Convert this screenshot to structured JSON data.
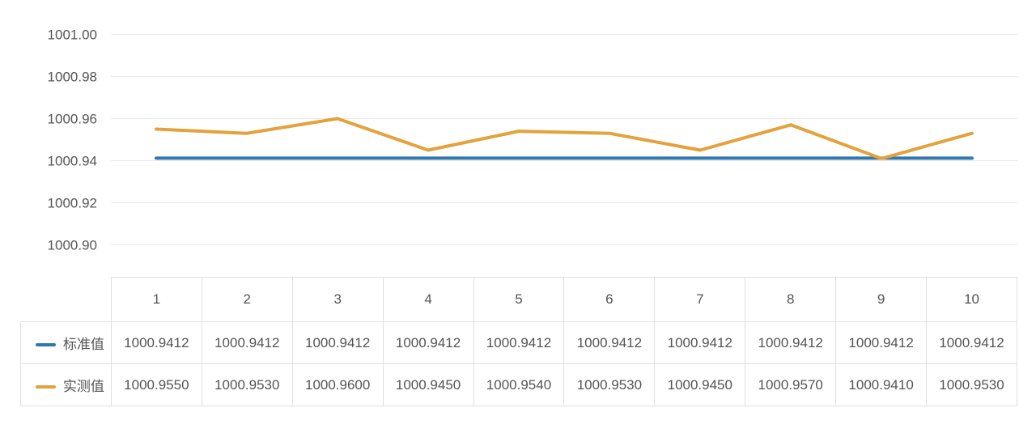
{
  "page": {
    "background_color": "#ffffff"
  },
  "chart_data": {
    "type": "line",
    "title": "",
    "xlabel": "",
    "ylabel": "",
    "categories": [
      "1",
      "2",
      "3",
      "4",
      "5",
      "6",
      "7",
      "8",
      "9",
      "10"
    ],
    "series": [
      {
        "name": "标准值",
        "color": "#2f78b0",
        "values": [
          1000.9412,
          1000.9412,
          1000.9412,
          1000.9412,
          1000.9412,
          1000.9412,
          1000.9412,
          1000.9412,
          1000.9412,
          1000.9412
        ]
      },
      {
        "name": "实测值",
        "color": "#e3a23b",
        "values": [
          1000.955,
          1000.953,
          1000.96,
          1000.945,
          1000.954,
          1000.953,
          1000.945,
          1000.957,
          1000.941,
          1000.953
        ]
      }
    ],
    "ylim": [
      1000.9,
      1001.0
    ],
    "ytick_labels": [
      "1001.00",
      "1000.98",
      "1000.96",
      "1000.94",
      "1000.92",
      "1000.90"
    ],
    "grid": true,
    "gridline_color": "#e9e9e9",
    "axis_text_color": "#565656",
    "line_width": 4,
    "markers": false,
    "legend_position": "table-row-headers",
    "value_decimals": 4
  },
  "table": {
    "corner_label": "",
    "border_color": "#e0e0e0",
    "text_color": "#545454",
    "column_headers": [
      "1",
      "2",
      "3",
      "4",
      "5",
      "6",
      "7",
      "8",
      "9",
      "10"
    ],
    "rows": [
      {
        "label": "标准值",
        "cells": [
          "1000.9412",
          "1000.9412",
          "1000.9412",
          "1000.9412",
          "1000.9412",
          "1000.9412",
          "1000.9412",
          "1000.9412",
          "1000.9412",
          "1000.9412"
        ]
      },
      {
        "label": "实测值",
        "cells": [
          "1000.9550",
          "1000.9530",
          "1000.9600",
          "1000.9450",
          "1000.9540",
          "1000.9530",
          "1000.9450",
          "1000.9570",
          "1000.9410",
          "1000.9530"
        ]
      }
    ]
  }
}
